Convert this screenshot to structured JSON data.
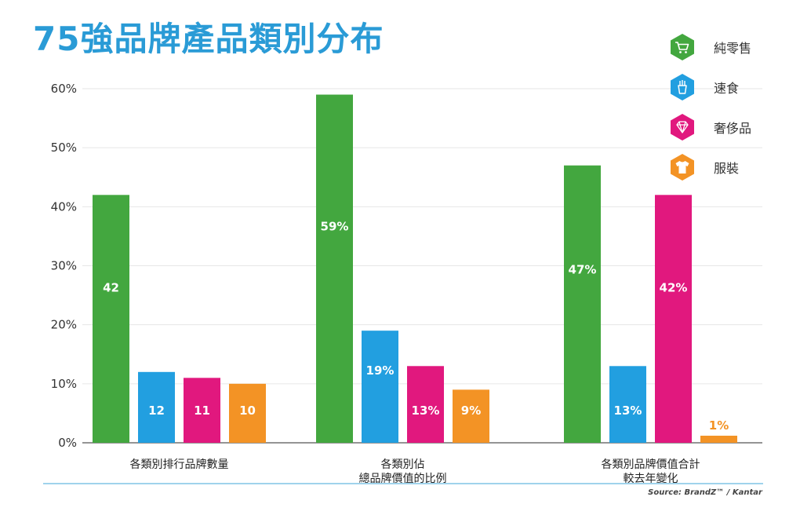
{
  "title": "75強品牌產品類別分布",
  "source": "Source: BrandZ™ / Kantar",
  "legend": [
    {
      "label": "純零售",
      "color": "#43a73f",
      "icon": "shopping-cart-icon"
    },
    {
      "label": "速食",
      "color": "#229fe0",
      "icon": "fries-icon"
    },
    {
      "label": "奢侈品",
      "color": "#e1187e",
      "icon": "diamond-icon"
    },
    {
      "label": "服裝",
      "color": "#f39325",
      "icon": "tshirt-icon"
    }
  ],
  "chart_data": {
    "type": "bar",
    "title": "75強品牌產品類別分布",
    "xlabel": "",
    "ylabel": "",
    "ylim": [
      0,
      60
    ],
    "yticks": [
      "0%",
      "10%",
      "20%",
      "30%",
      "40%",
      "50%",
      "60%"
    ],
    "grid": true,
    "legend_position": "top-right",
    "categories": [
      [
        "各類別排行品牌數量"
      ],
      [
        "各類別佔",
        "總品牌價值的比例"
      ],
      [
        "各類別品牌價值合計",
        "較去年變化"
      ]
    ],
    "series": [
      {
        "name": "純零售",
        "color": "#43a73f",
        "values": [
          42,
          59,
          47
        ],
        "labels": [
          "42",
          "59%",
          "47%"
        ]
      },
      {
        "name": "速食",
        "color": "#229fe0",
        "values": [
          12,
          19,
          13
        ],
        "labels": [
          "12",
          "19%",
          "13%"
        ]
      },
      {
        "name": "奢侈品",
        "color": "#e1187e",
        "values": [
          11,
          13,
          42
        ],
        "labels": [
          "11",
          "13%",
          "42%"
        ]
      },
      {
        "name": "服裝",
        "color": "#f39325",
        "values": [
          10,
          9,
          1.2
        ],
        "labels": [
          "10",
          "9%",
          "1%"
        ]
      }
    ]
  }
}
